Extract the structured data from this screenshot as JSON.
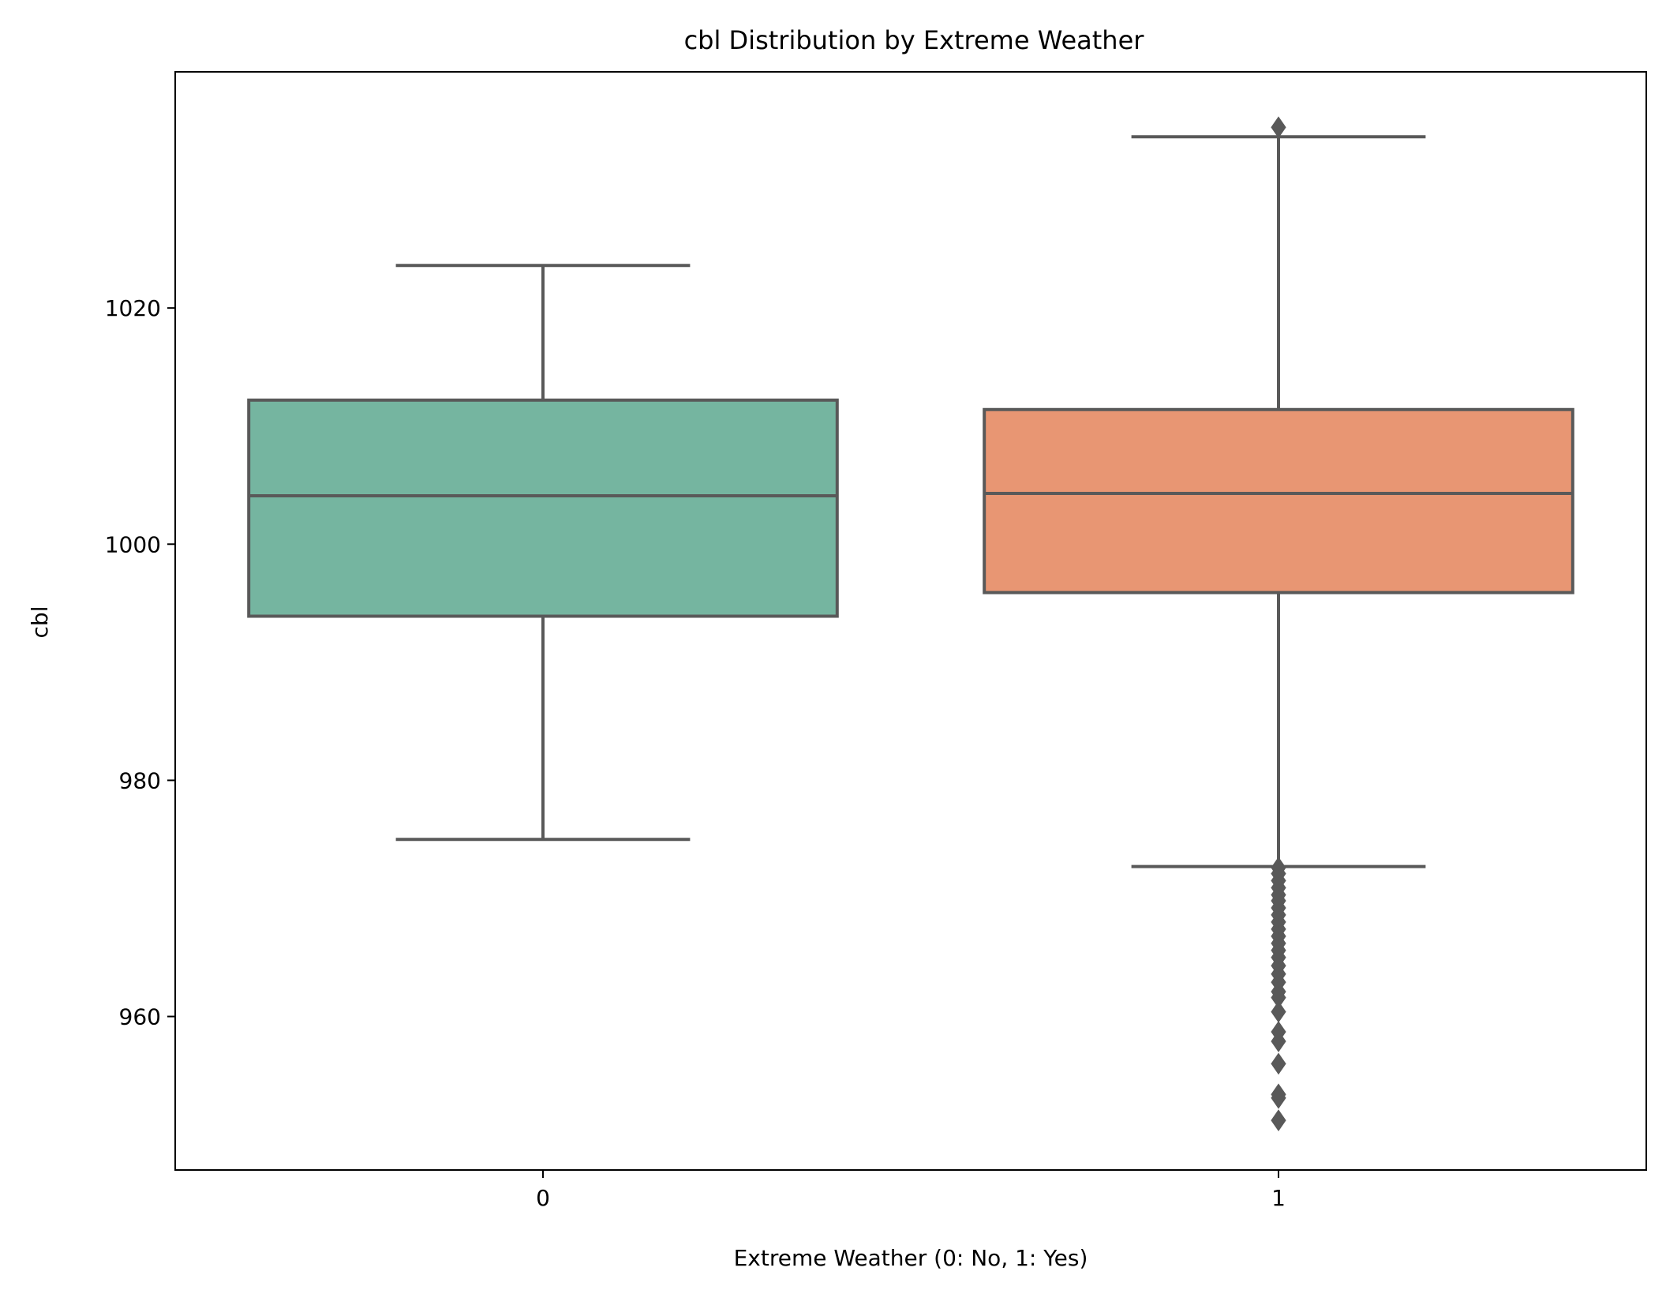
{
  "chart_data": {
    "type": "boxplot",
    "title": "cbl Distribution by Extreme Weather",
    "xlabel": "Extreme Weather (0: No, 1: Yes)",
    "ylabel": "cbl",
    "categories": [
      "0",
      "1"
    ],
    "ylim": [
      947,
      1040
    ],
    "yticks": [
      960,
      980,
      1000,
      1020
    ],
    "grid": false,
    "boxes": [
      {
        "category": "0",
        "whisker_low": 975.0,
        "q1": 993.9,
        "median": 1004.1,
        "q3": 1012.2,
        "whisker_high": 1023.6,
        "outliers": [],
        "color": "#75b5a0"
      },
      {
        "category": "1",
        "whisker_low": 972.7,
        "q1": 995.9,
        "median": 1004.3,
        "q3": 1011.4,
        "whisker_high": 1034.5,
        "outliers": [
          1035.3,
          972.6,
          972.1,
          971.5,
          970.9,
          970.3,
          969.8,
          969.2,
          968.6,
          968.0,
          967.4,
          966.8,
          966.2,
          965.6,
          965.0,
          964.3,
          963.6,
          962.9,
          962.1,
          961.6,
          960.4,
          958.7,
          957.9,
          956.0,
          953.4,
          953.1,
          951.2
        ],
        "color": "#e89673"
      }
    ],
    "line_color": "#595959"
  }
}
